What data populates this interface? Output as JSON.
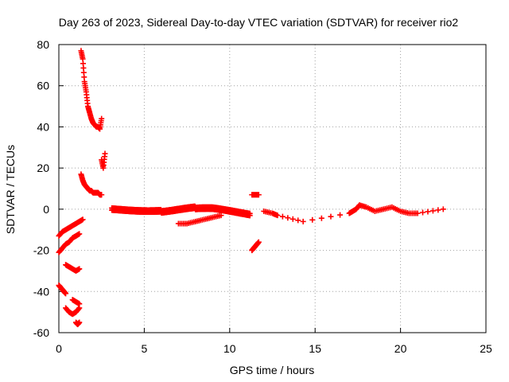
{
  "chart_data": {
    "type": "scatter",
    "title": "Day 263 of 2023, Sidereal Day-to-day VTEC variation (SDTVAR) for receiver rio2",
    "xlabel": "GPS time / hours",
    "ylabel": "SDTVAR / TECUs",
    "xlim": [
      0,
      25
    ],
    "ylim": [
      -60,
      80
    ],
    "xticks": [
      "0",
      "5",
      "10",
      "15",
      "20",
      "25"
    ],
    "yticks": [
      "-60",
      "-40",
      "-20",
      "0",
      "20",
      "40",
      "60",
      "80"
    ],
    "grid": true,
    "marker": "plus",
    "color": "#ff0000",
    "series": [
      {
        "name": "band-zero",
        "x_start": 3.1,
        "x_end": 11.2,
        "y_fn": "near-zero"
      },
      {
        "name": "arc-top",
        "x": [
          1.3,
          1.4,
          1.5,
          1.6,
          1.7,
          1.8,
          1.9,
          2.0,
          2.1,
          2.2,
          2.3,
          2.4,
          2.5
        ],
        "y": [
          77,
          73,
          62,
          57,
          50,
          47,
          44,
          42,
          41,
          40,
          40,
          39,
          44
        ]
      },
      {
        "name": "arc-mid",
        "x": [
          1.3,
          1.4,
          1.5,
          1.6,
          1.7,
          1.8,
          1.9,
          2.0,
          2.1,
          2.2,
          2.3,
          2.4,
          2.5
        ],
        "y": [
          17,
          14,
          12,
          11,
          10,
          9,
          9,
          8,
          8,
          8,
          8,
          7,
          7
        ]
      },
      {
        "name": "arc-low",
        "x": [
          0.0,
          0.2,
          0.4,
          0.6,
          0.8,
          1.0,
          1.2,
          1.4
        ],
        "y": [
          -13,
          -11,
          -10,
          -9,
          -8,
          -7,
          -6,
          -5
        ]
      },
      {
        "name": "arc-neg20",
        "x": [
          0.0,
          0.2,
          0.4,
          0.6,
          0.8,
          1.0,
          1.2
        ],
        "y": [
          -21,
          -19,
          -17,
          -16,
          -14,
          -13,
          -12
        ]
      },
      {
        "name": "arc-neg30",
        "x": [
          0.4,
          0.6,
          0.8,
          1.0,
          1.2
        ],
        "y": [
          -27,
          -28,
          -29,
          -30,
          -29
        ]
      },
      {
        "name": "arc-neg40",
        "x": [
          0.0,
          0.1,
          0.2,
          0.3,
          0.4
        ],
        "y": [
          -37,
          -38,
          -39,
          -40,
          -41
        ]
      },
      {
        "name": "arc-neg50",
        "x": [
          0.4,
          0.6,
          0.8,
          1.0,
          1.2
        ],
        "y": [
          -48,
          -50,
          -51,
          -50,
          -48
        ]
      },
      {
        "name": "arc-neg55",
        "x": [
          1.0,
          1.1,
          1.2
        ],
        "y": [
          -55,
          -56,
          -55
        ]
      },
      {
        "name": "arc-neg45",
        "x": [
          0.8,
          1.0,
          1.2
        ],
        "y": [
          -44,
          -45,
          -46
        ]
      },
      {
        "name": "arc-pos",
        "x": [
          2.5,
          2.6,
          2.7
        ],
        "y": [
          24,
          20,
          27
        ]
      },
      {
        "name": "dip-7to10",
        "x": [
          7.0,
          7.5,
          8.0,
          8.5,
          9.0,
          9.5
        ],
        "y": [
          -7,
          -7,
          -6,
          -5,
          -4,
          -3
        ]
      },
      {
        "name": "segment-11-12",
        "x": [
          11.3,
          11.5,
          11.7
        ],
        "y": [
          7,
          7,
          7
        ]
      },
      {
        "name": "segment-11-12-neg",
        "x": [
          11.3,
          11.4,
          11.5,
          11.6,
          11.7
        ],
        "y": [
          -20,
          -19,
          -18,
          -17,
          -16
        ]
      },
      {
        "name": "tail",
        "x": [
          12.0,
          12.5,
          12.8,
          14.3,
          17.0,
          17.2,
          17.4,
          17.6,
          18.0,
          18.5,
          19.0,
          19.5,
          20.0,
          20.5,
          21.0,
          22.5
        ],
        "y": [
          -1,
          -2,
          -3,
          -6,
          -2,
          -1,
          0,
          2,
          1,
          -1,
          0,
          1,
          -1,
          -2,
          -2,
          0
        ]
      }
    ]
  }
}
